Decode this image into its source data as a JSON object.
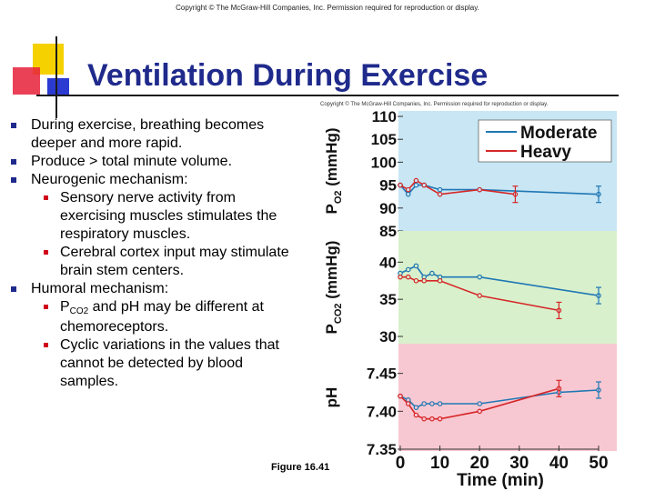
{
  "copyright_top": "Copyright © The McGraw-Hill Companies, Inc. Permission required for reproduction or display.",
  "copyright_figure": "Copyright © The McGraw-Hill Companies, Inc. Permission required for reproduction or display.",
  "title": "Ventilation During Exercise",
  "bullets": {
    "b1": "During exercise, breathing becomes deeper and more rapid.",
    "b2": "Produce > total minute volume.",
    "b3": "Neurogenic mechanism:",
    "b3a": "Sensory nerve activity from exercising muscles stimulates the respiratory muscles.",
    "b3b": "Cerebral cortex input may stimulate brain stem centers.",
    "b4": "Humoral mechanism:",
    "b4a_pre": "P",
    "b4a_sub": "CO2",
    "b4a_post": " and pH may be different at chemoreceptors.",
    "b4b": "Cyclic variations in the values that cannot be detected by blood samples."
  },
  "figure_label": "Figure 16.41",
  "colors": {
    "title": "#1f2a8c",
    "moderate": "#1f77b4",
    "heavy": "#d62728",
    "panel_po2": "#c8e6f4",
    "panel_pco2": "#d8f0cc",
    "panel_ph": "#f8c8d2"
  },
  "chart_data": {
    "type": "line",
    "xlabel": "Time (min)",
    "x_ticks": [
      0,
      10,
      20,
      30,
      40,
      50
    ],
    "xlim": [
      0,
      50
    ],
    "legend": [
      "Moderate",
      "Heavy"
    ],
    "legend_position": "top-right",
    "panels": [
      {
        "name": "po2",
        "ylabel_main": "P",
        "ylabel_sub": "O2",
        "ylabel_unit": " (mmHg)",
        "ylim": [
          85,
          110
        ],
        "y_ticks": [
          110,
          105,
          100,
          95,
          90,
          85
        ],
        "series": [
          {
            "name": "Moderate",
            "x": [
              0,
              2,
              4,
              6,
              10,
              20,
              50
            ],
            "y": [
              95,
              93,
              95,
              95,
              94,
              94,
              93
            ]
          },
          {
            "name": "Heavy",
            "x": [
              0,
              2,
              4,
              6,
              10,
              20,
              29
            ],
            "y": [
              95,
              94,
              96,
              95,
              93,
              94,
              93
            ]
          }
        ]
      },
      {
        "name": "pco2",
        "ylabel_main": "P",
        "ylabel_sub": "CO2",
        "ylabel_unit": " (mmHg)",
        "ylim": [
          30,
          42
        ],
        "y_ticks": [
          40,
          35,
          30
        ],
        "series": [
          {
            "name": "Moderate",
            "x": [
              0,
              2,
              4,
              6,
              8,
              10,
              20,
              50
            ],
            "y": [
              38.5,
              39,
              39.5,
              38,
              38.5,
              38,
              38,
              35.5
            ]
          },
          {
            "name": "Heavy",
            "x": [
              0,
              2,
              4,
              6,
              10,
              20,
              40
            ],
            "y": [
              38,
              38,
              37.5,
              37.5,
              37.5,
              35.5,
              33.5
            ]
          }
        ]
      },
      {
        "name": "ph",
        "ylabel_main": "pH",
        "ylabel_sub": "",
        "ylabel_unit": "",
        "ylim": [
          7.35,
          7.47
        ],
        "y_ticks": [
          "7.45",
          "7.40",
          "7.35"
        ],
        "series": [
          {
            "name": "Moderate",
            "x": [
              0,
              2,
              4,
              6,
              8,
              10,
              20,
              40,
              50
            ],
            "y": [
              7.42,
              7.415,
              7.405,
              7.41,
              7.41,
              7.41,
              7.41,
              7.425,
              7.428
            ]
          },
          {
            "name": "Heavy",
            "x": [
              0,
              2,
              4,
              6,
              8,
              10,
              20,
              40
            ],
            "y": [
              7.42,
              7.41,
              7.395,
              7.39,
              7.39,
              7.39,
              7.4,
              7.43
            ]
          }
        ]
      }
    ]
  }
}
